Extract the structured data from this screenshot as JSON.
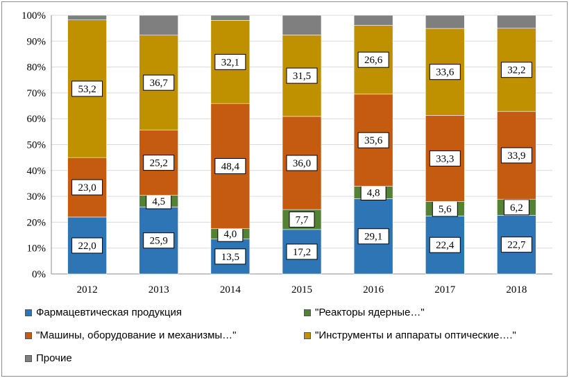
{
  "chart_data": {
    "type": "bar",
    "stacked": true,
    "percent": true,
    "categories": [
      "2012",
      "2013",
      "2014",
      "2015",
      "2016",
      "2017",
      "2018"
    ],
    "y_ticks": [
      "0%",
      "10%",
      "20%",
      "30%",
      "40%",
      "50%",
      "60%",
      "70%",
      "80%",
      "90%",
      "100%"
    ],
    "ylim": [
      0,
      100
    ],
    "series": [
      {
        "name": "Фармацевтическая  продукция",
        "color": "#2e75b6",
        "values": [
          22.0,
          25.9,
          13.5,
          17.2,
          29.1,
          22.4,
          22.7
        ],
        "labels": [
          "22,0",
          "25,9",
          "13,5",
          "17,2",
          "29,1",
          "22,4",
          "22,7"
        ]
      },
      {
        "name": "\"Реакторы ядерные…\"",
        "color": "#548235",
        "values": [
          0,
          4.5,
          4.0,
          7.7,
          4.8,
          5.6,
          6.2
        ],
        "labels": [
          "",
          "4,5",
          "4,0",
          "7,7",
          "4,8",
          "5,6",
          "6,2"
        ]
      },
      {
        "name": "\"Машины, оборудование и механизмы…\"",
        "color": "#c55a11",
        "values": [
          23.0,
          25.2,
          48.4,
          36.0,
          35.6,
          33.3,
          33.9
        ],
        "labels": [
          "23,0",
          "25,2",
          "48,4",
          "36,0",
          "35,6",
          "33,3",
          "33,9"
        ]
      },
      {
        "name": "\"Инструменты и аппараты  оптические….\"",
        "color": "#bf9000",
        "values": [
          53.2,
          36.7,
          32.1,
          31.5,
          26.6,
          33.6,
          32.2
        ],
        "labels": [
          "53,2",
          "36,7",
          "32,1",
          "31,5",
          "26,6",
          "33,6",
          "32,2"
        ]
      },
      {
        "name": "Прочие",
        "color": "#7f7f7f",
        "values": [
          1.8,
          7.7,
          2.0,
          7.6,
          3.9,
          5.1,
          5.0
        ],
        "labels": [
          "",
          "",
          "",
          "",
          "",
          "",
          ""
        ]
      }
    ],
    "grid": "horizontal",
    "legend": "bottom"
  }
}
